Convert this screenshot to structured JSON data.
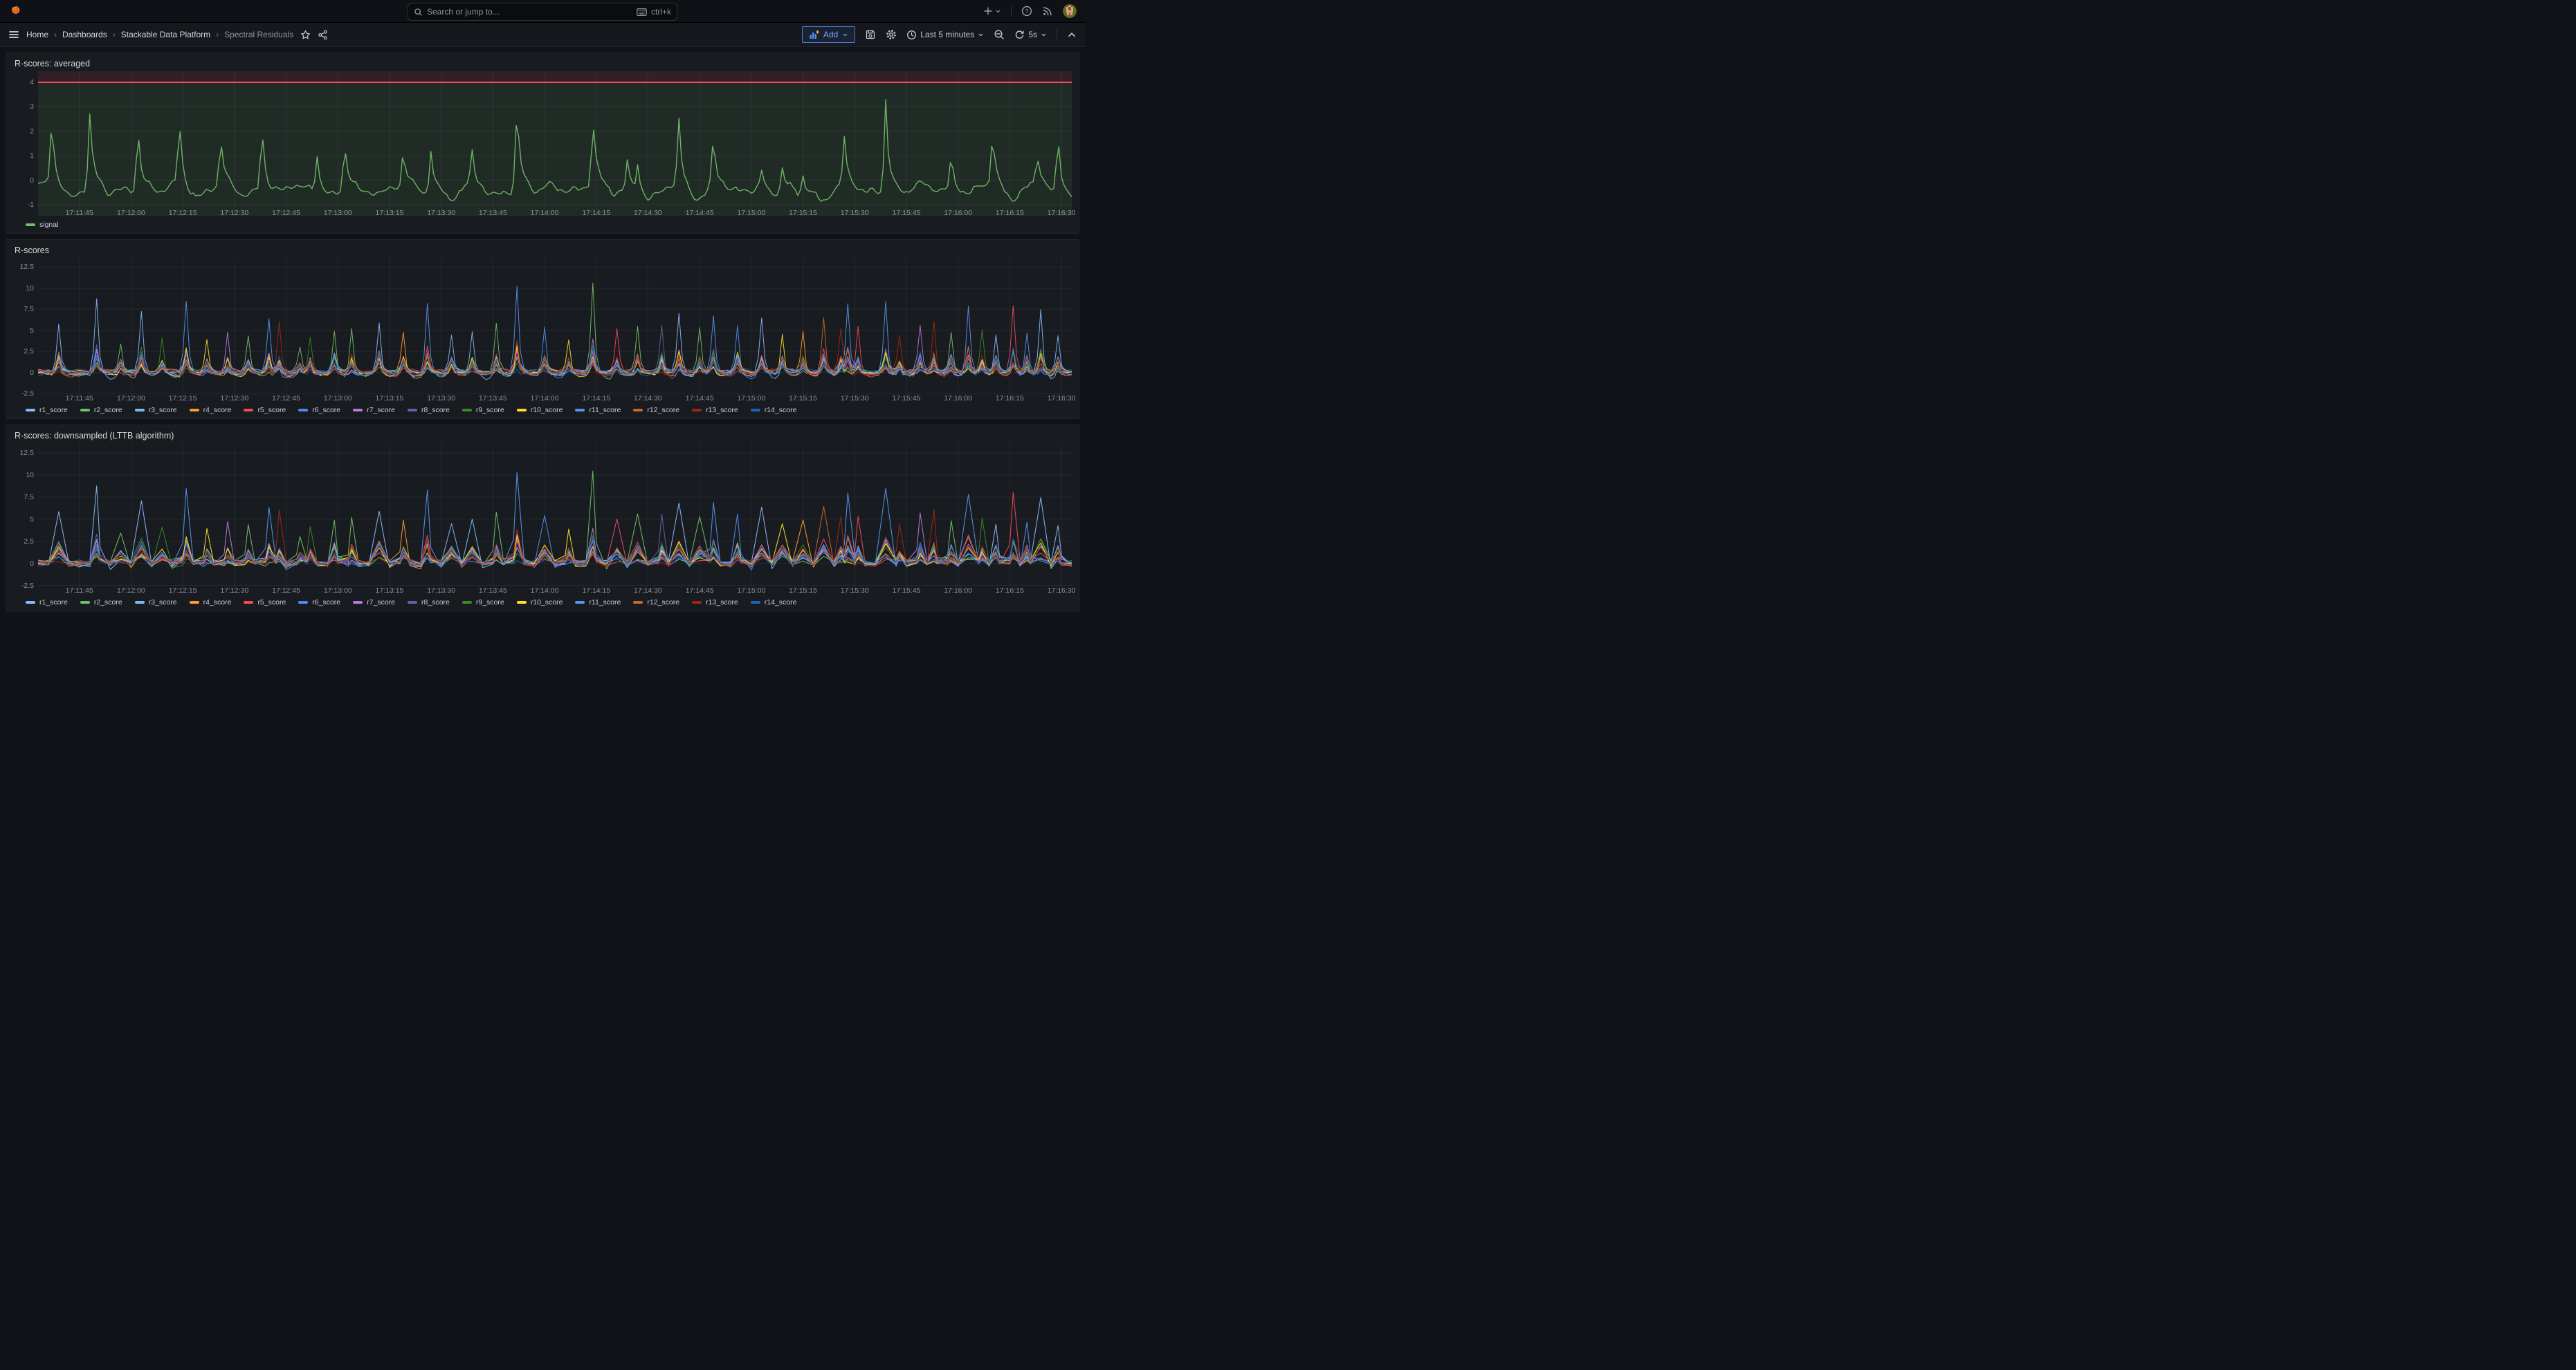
{
  "topbar": {
    "search_placeholder": "Search or jump to...",
    "shortcut": "ctrl+k"
  },
  "breadcrumb": {
    "separator": "›",
    "items": [
      {
        "label": "Home",
        "current": false
      },
      {
        "label": "Dashboards",
        "current": false
      },
      {
        "label": "Stackable Data Platform",
        "current": false
      },
      {
        "label": "Spectral Residuals",
        "current": true
      }
    ]
  },
  "toolbar": {
    "add_label": "Add",
    "time_range_label": "Last 5 minutes",
    "refresh_interval_label": "5s"
  },
  "colors": {
    "page_bg": "#111217",
    "panel_bg": "#181B1F",
    "accent_blue": "#3D71D9",
    "threshold_red": "#F2495C",
    "signal_green": "#73BF69",
    "grid": "rgba(204,204,220,0.08)"
  },
  "chart_data": [
    {
      "type": "line",
      "title": "R-scores: averaged",
      "x_domain_seconds": [
        0,
        300
      ],
      "x_tick_seconds": [
        12,
        27,
        42,
        57,
        72,
        87,
        102,
        117,
        132,
        147,
        162,
        177,
        192,
        207,
        222,
        237,
        252,
        267,
        282,
        297
      ],
      "x_tick_labels": [
        "17:11:45",
        "17:12:00",
        "17:12:15",
        "17:12:30",
        "17:12:45",
        "17:13:00",
        "17:13:15",
        "17:13:30",
        "17:13:45",
        "17:14:00",
        "17:14:15",
        "17:14:30",
        "17:14:45",
        "17:15:00",
        "17:15:15",
        "17:15:30",
        "17:15:45",
        "17:16:00",
        "17:16:15",
        "17:16:30"
      ],
      "y_ticks": [
        4,
        3,
        2,
        1,
        0,
        -1
      ],
      "y_domain": [
        -1.45,
        4.45
      ],
      "grid": true,
      "legend_position": "bottom",
      "threshold": {
        "value": 4,
        "color": "#F2495C",
        "fill_above": "rgba(242,73,92,0.12)",
        "fill_below": "rgba(115,191,105,0.10)"
      },
      "seed": 42,
      "sample_step": 0.75,
      "line_width": 1.4,
      "baseline": -0.28,
      "series": [
        {
          "name": "signal",
          "color": "#73BF69",
          "spike_points_t_peak": [
            [
              4,
              3.2
            ],
            [
              15,
              2.9
            ],
            [
              29,
              2.9
            ],
            [
              41,
              3.05
            ],
            [
              53,
              2.1
            ],
            [
              65,
              2.8
            ],
            [
              81,
              1.5
            ],
            [
              89,
              2.0
            ],
            [
              106,
              1.7
            ],
            [
              114,
              1.75
            ],
            [
              126,
              1.3
            ],
            [
              139,
              3.7
            ],
            [
              161,
              3.1
            ],
            [
              171,
              1.2
            ],
            [
              174,
              1.3
            ],
            [
              186,
              2.65
            ],
            [
              196,
              2.35
            ],
            [
              210,
              0.85
            ],
            [
              216,
              1.05
            ],
            [
              222,
              0.8
            ],
            [
              234,
              2.0
            ],
            [
              246,
              3.8
            ],
            [
              265,
              1.5
            ],
            [
              277,
              2.5
            ],
            [
              290,
              1.4
            ],
            [
              296,
              2.65
            ]
          ]
        }
      ]
    },
    {
      "type": "line",
      "title": "R-scores",
      "x_domain_seconds": [
        0,
        300
      ],
      "x_tick_seconds": [
        12,
        27,
        42,
        57,
        72,
        87,
        102,
        117,
        132,
        147,
        162,
        177,
        192,
        207,
        222,
        237,
        252,
        267,
        282,
        297
      ],
      "x_tick_labels": [
        "17:11:45",
        "17:12:00",
        "17:12:15",
        "17:12:30",
        "17:12:45",
        "17:13:00",
        "17:13:15",
        "17:13:30",
        "17:13:45",
        "17:14:00",
        "17:14:15",
        "17:14:30",
        "17:14:45",
        "17:15:00",
        "17:15:15",
        "17:15:30",
        "17:15:45",
        "17:16:00",
        "17:16:15",
        "17:16:30"
      ],
      "y_ticks": [
        12.5,
        10,
        7.5,
        5,
        2.5,
        0,
        -2.5
      ],
      "y_domain": [
        -3.4,
        13.6
      ],
      "grid": true,
      "legend_position": "bottom",
      "seed": 7,
      "sample_step": 1,
      "line_width": 1,
      "baseline": 0.05,
      "series": [
        {
          "name": "r1_score",
          "color": "#8AB8FF"
        },
        {
          "name": "r2_score",
          "color": "#73BF69"
        },
        {
          "name": "r3_score",
          "color": "#7EB8F2"
        },
        {
          "name": "r4_score",
          "color": "#FF9830"
        },
        {
          "name": "r5_score",
          "color": "#F2495C"
        },
        {
          "name": "r6_score",
          "color": "#4D8BF0"
        },
        {
          "name": "r7_score",
          "color": "#B877D9"
        },
        {
          "name": "r8_score",
          "color": "#705DA0"
        },
        {
          "name": "r9_score",
          "color": "#388729"
        },
        {
          "name": "r10_score",
          "color": "#FADE2A"
        },
        {
          "name": "r11_score",
          "color": "#5794F2"
        },
        {
          "name": "r12_score",
          "color": "#C4662D"
        },
        {
          "name": "r13_score",
          "color": "#9E2612"
        },
        {
          "name": "r14_score",
          "color": "#1F60C4"
        }
      ],
      "spike_events_t_peak_leader": [
        [
          6,
          5.8,
          0
        ],
        [
          17,
          8.8,
          0
        ],
        [
          24,
          3.5,
          1
        ],
        [
          30,
          7.1,
          0
        ],
        [
          36,
          4.2,
          8
        ],
        [
          43,
          8.1,
          10
        ],
        [
          49,
          4.0,
          9
        ],
        [
          55,
          5.1,
          6
        ],
        [
          61,
          4.4,
          1
        ],
        [
          67,
          6.4,
          10
        ],
        [
          70,
          6.2,
          12
        ],
        [
          76,
          2.9,
          1
        ],
        [
          79,
          4.4,
          8
        ],
        [
          86,
          5.2,
          1
        ],
        [
          91,
          5.6,
          1
        ],
        [
          99,
          6.2,
          0
        ],
        [
          106,
          4.9,
          3
        ],
        [
          113,
          8.3,
          10
        ],
        [
          120,
          4.4,
          2
        ],
        [
          126,
          5.0,
          2
        ],
        [
          133,
          5.7,
          1
        ],
        [
          139,
          10.0,
          10
        ],
        [
          147,
          5.4,
          5
        ],
        [
          154,
          4.1,
          9
        ],
        [
          161,
          10.5,
          1
        ],
        [
          168,
          4.8,
          4
        ],
        [
          174,
          5.5,
          1
        ],
        [
          181,
          5.8,
          7
        ],
        [
          186,
          6.8,
          0
        ],
        [
          192,
          5.2,
          1
        ],
        [
          196,
          6.9,
          10
        ],
        [
          203,
          5.6,
          5
        ],
        [
          210,
          6.3,
          0
        ],
        [
          216,
          4.9,
          9
        ],
        [
          222,
          5.0,
          3
        ],
        [
          228,
          6.6,
          11
        ],
        [
          233,
          5.2,
          12
        ],
        [
          235,
          7.9,
          10
        ],
        [
          238,
          5.6,
          4
        ],
        [
          246,
          8.5,
          10
        ],
        [
          250,
          4.2,
          12
        ],
        [
          256,
          5.4,
          6
        ],
        [
          260,
          6.5,
          12
        ],
        [
          265,
          5.1,
          1
        ],
        [
          270,
          8.0,
          10
        ],
        [
          274,
          5.2,
          8
        ],
        [
          278,
          4.7,
          0
        ],
        [
          283,
          7.8,
          4
        ],
        [
          287,
          5.0,
          10
        ],
        [
          291,
          7.6,
          0
        ],
        [
          296,
          4.4,
          2
        ]
      ]
    },
    {
      "type": "line",
      "title": "R-scores: downsampled (LTTB algorithm)",
      "x_domain_seconds": [
        0,
        300
      ],
      "x_tick_seconds": [
        12,
        27,
        42,
        57,
        72,
        87,
        102,
        117,
        132,
        147,
        162,
        177,
        192,
        207,
        222,
        237,
        252,
        267,
        282,
        297
      ],
      "x_tick_labels": [
        "17:11:45",
        "17:12:00",
        "17:12:15",
        "17:12:30",
        "17:12:45",
        "17:13:00",
        "17:13:15",
        "17:13:30",
        "17:13:45",
        "17:14:00",
        "17:14:15",
        "17:14:30",
        "17:14:45",
        "17:15:00",
        "17:15:15",
        "17:15:30",
        "17:15:45",
        "17:16:00",
        "17:16:15",
        "17:16:30"
      ],
      "y_ticks": [
        12.5,
        10,
        7.5,
        5,
        2.5,
        0,
        -2.5
      ],
      "y_domain": [
        -3.4,
        13.6
      ],
      "grid": true,
      "legend_position": "bottom",
      "seed": 7,
      "sample_step": 3,
      "line_width": 1.1,
      "baseline": 0.05,
      "series": [
        {
          "name": "r1_score",
          "color": "#8AB8FF"
        },
        {
          "name": "r2_score",
          "color": "#73BF69"
        },
        {
          "name": "r3_score",
          "color": "#7EB8F2"
        },
        {
          "name": "r4_score",
          "color": "#FF9830"
        },
        {
          "name": "r5_score",
          "color": "#F2495C"
        },
        {
          "name": "r6_score",
          "color": "#4D8BF0"
        },
        {
          "name": "r7_score",
          "color": "#B877D9"
        },
        {
          "name": "r8_score",
          "color": "#705DA0"
        },
        {
          "name": "r9_score",
          "color": "#388729"
        },
        {
          "name": "r10_score",
          "color": "#FADE2A"
        },
        {
          "name": "r11_score",
          "color": "#5794F2"
        },
        {
          "name": "r12_score",
          "color": "#C4662D"
        },
        {
          "name": "r13_score",
          "color": "#9E2612"
        },
        {
          "name": "r14_score",
          "color": "#1F60C4"
        }
      ],
      "spike_events_t_peak_leader": [
        [
          6,
          5.8,
          0
        ],
        [
          17,
          8.8,
          0
        ],
        [
          24,
          3.5,
          1
        ],
        [
          30,
          7.1,
          0
        ],
        [
          36,
          4.2,
          8
        ],
        [
          43,
          8.1,
          10
        ],
        [
          49,
          4.0,
          9
        ],
        [
          55,
          5.1,
          6
        ],
        [
          61,
          4.4,
          1
        ],
        [
          67,
          6.4,
          10
        ],
        [
          70,
          6.2,
          12
        ],
        [
          76,
          2.9,
          1
        ],
        [
          79,
          4.4,
          8
        ],
        [
          86,
          5.2,
          1
        ],
        [
          91,
          5.6,
          1
        ],
        [
          99,
          6.2,
          0
        ],
        [
          106,
          4.9,
          3
        ],
        [
          113,
          8.3,
          10
        ],
        [
          120,
          4.4,
          2
        ],
        [
          126,
          5.0,
          2
        ],
        [
          133,
          5.7,
          1
        ],
        [
          139,
          10.0,
          10
        ],
        [
          147,
          5.4,
          5
        ],
        [
          154,
          4.1,
          9
        ],
        [
          161,
          10.5,
          1
        ],
        [
          168,
          4.8,
          4
        ],
        [
          174,
          5.5,
          1
        ],
        [
          181,
          5.8,
          7
        ],
        [
          186,
          6.8,
          0
        ],
        [
          192,
          5.2,
          1
        ],
        [
          196,
          6.9,
          10
        ],
        [
          203,
          5.6,
          5
        ],
        [
          210,
          6.3,
          0
        ],
        [
          216,
          4.9,
          9
        ],
        [
          222,
          5.0,
          3
        ],
        [
          228,
          6.6,
          11
        ],
        [
          233,
          5.2,
          12
        ],
        [
          235,
          7.9,
          10
        ],
        [
          238,
          5.6,
          4
        ],
        [
          246,
          8.5,
          10
        ],
        [
          250,
          4.2,
          12
        ],
        [
          256,
          5.4,
          6
        ],
        [
          260,
          6.5,
          12
        ],
        [
          265,
          5.1,
          1
        ],
        [
          270,
          8.0,
          10
        ],
        [
          274,
          5.2,
          8
        ],
        [
          278,
          4.7,
          0
        ],
        [
          283,
          7.8,
          4
        ],
        [
          287,
          5.0,
          10
        ],
        [
          291,
          7.6,
          0
        ],
        [
          296,
          4.4,
          2
        ]
      ]
    }
  ]
}
